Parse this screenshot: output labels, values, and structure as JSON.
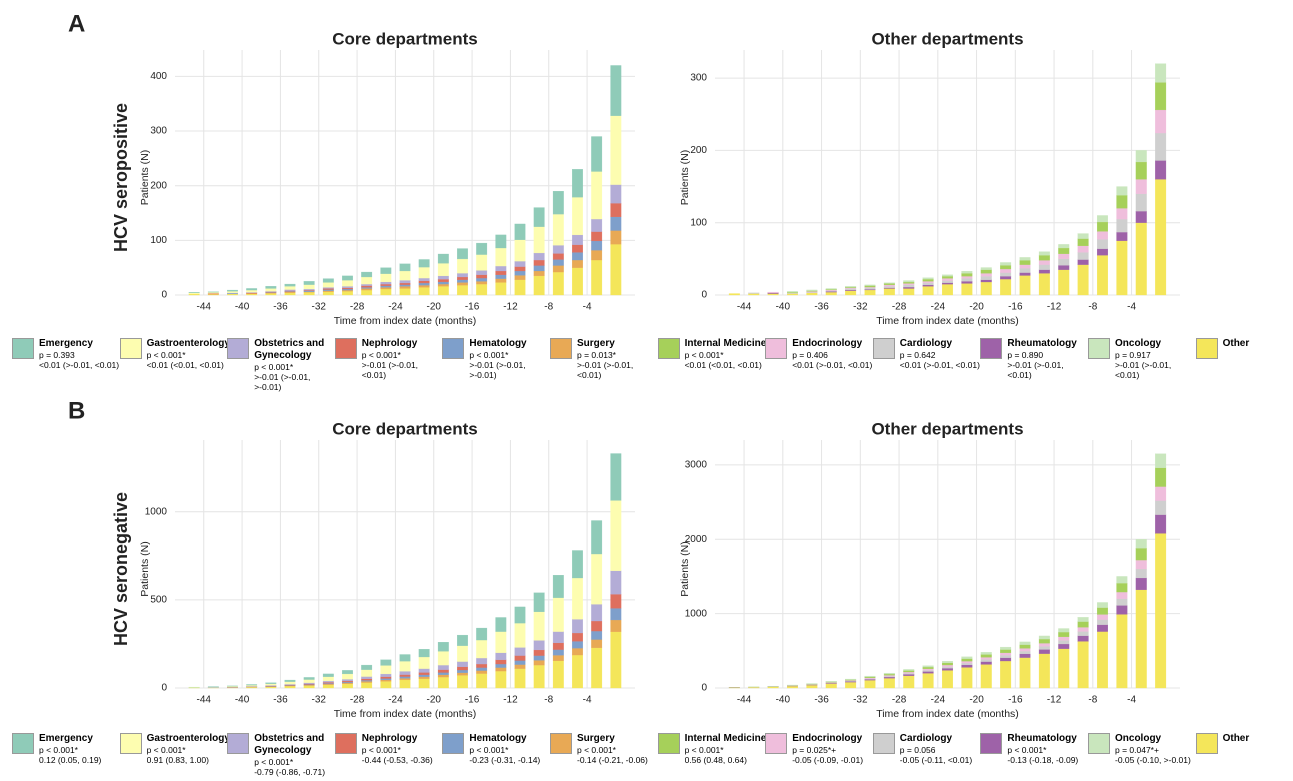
{
  "rows": [
    {
      "label": "A",
      "title": "HCV seropositive",
      "legend": [
        {
          "name": "Emergency",
          "color": "#8fcbb8",
          "p": "p = 0.393",
          "ci": "<0.01 (>-0.01, <0.01)"
        },
        {
          "name": "Gastroenterology",
          "color": "#fdfdb0",
          "p": "p < 0.001*",
          "ci": "<0.01 (<0.01, <0.01)"
        },
        {
          "name": "Obstetrics and Gynecology",
          "color": "#b3acd6",
          "p": "p < 0.001*",
          "ci": ">-0.01 (>-0.01, >-0.01)"
        },
        {
          "name": "Nephrology",
          "color": "#de6f5e",
          "p": "p < 0.001*",
          "ci": ">-0.01 (>-0.01, <0.01)"
        },
        {
          "name": "Hematology",
          "color": "#7e9fcb",
          "p": "p < 0.001*",
          "ci": ">-0.01 (>-0.01, >-0.01)"
        },
        {
          "name": "Surgery",
          "color": "#e8a955",
          "p": "p = 0.013*",
          "ci": ">-0.01 (>-0.01, <0.01)"
        },
        {
          "name": "Internal Medicine",
          "color": "#a6d05a",
          "p": "p < 0.001*",
          "ci": "<0.01 (<0.01, <0.01)"
        },
        {
          "name": "Endocrinology",
          "color": "#efbedc",
          "p": "p = 0.406",
          "ci": "<0.01 (>-0.01, <0.01)"
        },
        {
          "name": "Cardiology",
          "color": "#cfcfcf",
          "p": "p = 0.642",
          "ci": "<0.01 (>-0.01, <0.01)"
        },
        {
          "name": "Rheumatology",
          "color": "#9e62a8",
          "p": "p = 0.890",
          "ci": ">-0.01 (>-0.01, <0.01)"
        },
        {
          "name": "Oncology",
          "color": "#c9e6bd",
          "p": "p = 0.917",
          "ci": ">-0.01 (>-0.01, <0.01)"
        },
        {
          "name": "Other",
          "color": "#f4e65a"
        }
      ]
    },
    {
      "label": "B",
      "title": "HCV seronegative",
      "legend": [
        {
          "name": "Emergency",
          "color": "#8fcbb8",
          "p": "p < 0.001*",
          "ci": "0.12 (0.05, 0.19)"
        },
        {
          "name": "Gastroenterology",
          "color": "#fdfdb0",
          "p": "p < 0.001*",
          "ci": "0.91 (0.83, 1.00)"
        },
        {
          "name": "Obstetrics and Gynecology",
          "color": "#b3acd6",
          "p": "p < 0.001*",
          "ci": "-0.79 (-0.86, -0.71)"
        },
        {
          "name": "Nephrology",
          "color": "#de6f5e",
          "p": "p < 0.001*",
          "ci": "-0.44 (-0.53, -0.36)"
        },
        {
          "name": "Hematology",
          "color": "#7e9fcb",
          "p": "p < 0.001*",
          "ci": "-0.23 (-0.31, -0.14)"
        },
        {
          "name": "Surgery",
          "color": "#e8a955",
          "p": "p < 0.001*",
          "ci": "-0.14 (-0.21, -0.06)"
        },
        {
          "name": "Internal Medicine",
          "color": "#a6d05a",
          "p": "p < 0.001*",
          "ci": "0.56 (0.48, 0.64)"
        },
        {
          "name": "Endocrinology",
          "color": "#efbedc",
          "p": "p = 0.025*+",
          "ci": "-0.05 (-0.09, -0.01)"
        },
        {
          "name": "Cardiology",
          "color": "#cfcfcf",
          "p": "p = 0.056",
          "ci": "-0.05 (-0.11, <0.01)"
        },
        {
          "name": "Rheumatology",
          "color": "#9e62a8",
          "p": "p < 0.001*",
          "ci": "-0.13 (-0.18, -0.09)"
        },
        {
          "name": "Oncology",
          "color": "#c9e6bd",
          "p": "p = 0.047*+",
          "ci": "-0.05 (-0.10, >-0.01)"
        },
        {
          "name": "Other",
          "color": "#f4e65a"
        }
      ]
    }
  ],
  "chart_data": [
    {
      "type": "bar",
      "stacked": true,
      "title": "Core departments",
      "xlabel": "Time from index date (months)",
      "ylabel": "Patients (N)",
      "x": [
        -45,
        -43,
        -41,
        -39,
        -37,
        -35,
        -33,
        -31,
        -29,
        -27,
        -25,
        -23,
        -21,
        -19,
        -17,
        -15,
        -13,
        -11,
        -9,
        -7,
        -5,
        -3,
        -1
      ],
      "xlim": [
        -47,
        1
      ],
      "xticks": [
        -44,
        -40,
        -36,
        -32,
        -28,
        -24,
        -20,
        -16,
        -12,
        -8,
        -4
      ],
      "ylim": [
        0,
        430
      ],
      "yticks": [
        0,
        100,
        200,
        300,
        400
      ],
      "grid": true,
      "series": [
        {
          "name": "Other",
          "color": "#f4e65a",
          "values": [
            2,
            1,
            2,
            2,
            3,
            4,
            5,
            6,
            7,
            9,
            11,
            12,
            14,
            16,
            18,
            20,
            23,
            28,
            35,
            42,
            50,
            64,
            93
          ]
        },
        {
          "name": "Surgery",
          "color": "#e8a955",
          "values": [
            0,
            1,
            0,
            1,
            1,
            2,
            1,
            2,
            2,
            3,
            3,
            4,
            4,
            4,
            5,
            5,
            7,
            8,
            9,
            12,
            14,
            18,
            25
          ]
        },
        {
          "name": "Hematology",
          "color": "#7e9fcb",
          "values": [
            0,
            0,
            1,
            0,
            1,
            1,
            2,
            2,
            2,
            2,
            3,
            3,
            4,
            4,
            5,
            6,
            7,
            8,
            10,
            11,
            14,
            17,
            25
          ]
        },
        {
          "name": "Nephrology",
          "color": "#de6f5e",
          "values": [
            0,
            1,
            0,
            1,
            1,
            1,
            1,
            2,
            2,
            3,
            3,
            3,
            4,
            5,
            5,
            6,
            7,
            8,
            10,
            11,
            14,
            17,
            25
          ]
        },
        {
          "name": "Obstetrics and Gynecology",
          "color": "#b3acd6",
          "values": [
            0,
            0,
            1,
            1,
            1,
            2,
            2,
            2,
            3,
            3,
            4,
            5,
            5,
            6,
            7,
            8,
            9,
            10,
            13,
            15,
            18,
            23,
            34
          ]
        },
        {
          "name": "Gastroenterology",
          "color": "#fdfdb0",
          "values": [
            2,
            2,
            3,
            4,
            5,
            6,
            8,
            9,
            11,
            13,
            15,
            17,
            20,
            23,
            26,
            29,
            33,
            39,
            48,
            57,
            69,
            87,
            126
          ]
        },
        {
          "name": "Emergency",
          "color": "#8fcbb8",
          "values": [
            1,
            1,
            2,
            3,
            4,
            4,
            6,
            7,
            8,
            9,
            11,
            13,
            14,
            17,
            19,
            21,
            24,
            29,
            35,
            42,
            51,
            64,
            92
          ]
        }
      ]
    },
    {
      "type": "bar",
      "stacked": true,
      "title": "Other departments",
      "xlabel": "Time from index date (months)",
      "ylabel": "Patients (N)",
      "x": [
        -45,
        -43,
        -41,
        -39,
        -37,
        -35,
        -33,
        -31,
        -29,
        -27,
        -25,
        -23,
        -21,
        -19,
        -17,
        -15,
        -13,
        -11,
        -9,
        -7,
        -5,
        -3,
        -1
      ],
      "xlim": [
        -47,
        1
      ],
      "xticks": [
        -44,
        -40,
        -36,
        -32,
        -28,
        -24,
        -20,
        -16,
        -12,
        -8,
        -4
      ],
      "ylim": [
        0,
        325
      ],
      "yticks": [
        0,
        100,
        200,
        300
      ],
      "grid": true,
      "series": [
        {
          "name": "Other",
          "color": "#f4e65a",
          "values": [
            2,
            2,
            2,
            2,
            3,
            4,
            6,
            7,
            9,
            9,
            12,
            15,
            16,
            18,
            22,
            27,
            30,
            35,
            42,
            55,
            75,
            100,
            160
          ]
        },
        {
          "name": "Rheumatology",
          "color": "#9e62a8",
          "values": [
            0,
            0,
            1,
            0,
            0,
            1,
            1,
            1,
            1,
            2,
            2,
            2,
            3,
            3,
            4,
            4,
            5,
            6,
            7,
            9,
            12,
            16,
            26
          ]
        },
        {
          "name": "Cardiology",
          "color": "#cfcfcf",
          "values": [
            0,
            1,
            0,
            1,
            1,
            1,
            2,
            2,
            2,
            3,
            3,
            3,
            4,
            5,
            5,
            6,
            7,
            9,
            10,
            13,
            18,
            24,
            38
          ]
        },
        {
          "name": "Endocrinology",
          "color": "#efbedc",
          "values": [
            0,
            0,
            1,
            0,
            1,
            1,
            1,
            1,
            2,
            2,
            2,
            3,
            3,
            4,
            5,
            5,
            6,
            7,
            9,
            11,
            15,
            20,
            32
          ]
        },
        {
          "name": "Internal Medicine",
          "color": "#a6d05a",
          "values": [
            0,
            0,
            0,
            1,
            1,
            1,
            1,
            2,
            2,
            2,
            3,
            3,
            4,
            5,
            5,
            6,
            7,
            8,
            10,
            13,
            18,
            24,
            38
          ]
        },
        {
          "name": "Oncology",
          "color": "#c9e6bd",
          "values": [
            0,
            0,
            0,
            1,
            1,
            1,
            1,
            1,
            1,
            2,
            2,
            2,
            3,
            3,
            4,
            4,
            5,
            5,
            7,
            9,
            12,
            16,
            26
          ]
        }
      ]
    },
    {
      "type": "bar",
      "stacked": true,
      "title": "Core departments",
      "xlabel": "Time from index date (months)",
      "ylabel": "Patients (N)",
      "x": [
        -45,
        -43,
        -41,
        -39,
        -37,
        -35,
        -33,
        -31,
        -29,
        -27,
        -25,
        -23,
        -21,
        -19,
        -17,
        -15,
        -13,
        -11,
        -9,
        -7,
        -5,
        -3,
        -1
      ],
      "xlim": [
        -47,
        1
      ],
      "xticks": [
        -44,
        -40,
        -36,
        -32,
        -28,
        -24,
        -20,
        -16,
        -12,
        -8,
        -4
      ],
      "ylim": [
        0,
        1350
      ],
      "yticks": [
        0,
        500,
        1000
      ],
      "grid": true,
      "series": [
        {
          "name": "Other",
          "color": "#f4e65a",
          "values": [
            2,
            2,
            2,
            5,
            7,
            11,
            14,
            19,
            24,
            31,
            38,
            46,
            53,
            62,
            72,
            82,
            96,
            110,
            130,
            154,
            187,
            228,
            319
          ]
        },
        {
          "name": "Surgery",
          "color": "#e8a955",
          "values": [
            0,
            0,
            1,
            1,
            1,
            2,
            3,
            4,
            5,
            7,
            8,
            9,
            11,
            13,
            15,
            17,
            20,
            23,
            27,
            32,
            39,
            47,
            67
          ]
        },
        {
          "name": "Hematology",
          "color": "#7e9fcb",
          "values": [
            0,
            1,
            1,
            1,
            2,
            2,
            3,
            4,
            5,
            6,
            8,
            10,
            11,
            13,
            15,
            17,
            20,
            23,
            27,
            32,
            39,
            48,
            66
          ]
        },
        {
          "name": "Nephrology",
          "color": "#de6f5e",
          "values": [
            0,
            0,
            1,
            1,
            2,
            3,
            4,
            5,
            6,
            8,
            10,
            11,
            13,
            16,
            18,
            20,
            24,
            28,
            32,
            38,
            47,
            57,
            80
          ]
        },
        {
          "name": "Obstetrics and Gynecology",
          "color": "#b3acd6",
          "values": [
            0,
            1,
            1,
            2,
            3,
            4,
            6,
            8,
            10,
            13,
            16,
            19,
            22,
            26,
            30,
            34,
            40,
            46,
            54,
            64,
            78,
            95,
            133
          ]
        },
        {
          "name": "Gastroenterology",
          "color": "#fdfdb0",
          "values": [
            2,
            2,
            4,
            6,
            9,
            14,
            18,
            24,
            30,
            39,
            48,
            57,
            66,
            78,
            90,
            102,
            120,
            138,
            162,
            192,
            234,
            285,
            399
          ]
        },
        {
          "name": "Emergency",
          "color": "#8fcbb8",
          "values": [
            1,
            2,
            2,
            4,
            6,
            9,
            12,
            16,
            20,
            26,
            32,
            38,
            44,
            52,
            60,
            68,
            80,
            92,
            108,
            128,
            156,
            190,
            266
          ]
        }
      ]
    },
    {
      "type": "bar",
      "stacked": true,
      "title": "Other departments",
      "xlabel": "Time from index date (months)",
      "ylabel": "Patients (N)",
      "x": [
        -45,
        -43,
        -41,
        -39,
        -37,
        -35,
        -33,
        -31,
        -29,
        -27,
        -25,
        -23,
        -21,
        -19,
        -17,
        -15,
        -13,
        -11,
        -9,
        -7,
        -5,
        -3,
        -1
      ],
      "xlim": [
        -47,
        1
      ],
      "xticks": [
        -44,
        -40,
        -36,
        -32,
        -28,
        -24,
        -20,
        -16,
        -12,
        -8,
        -4
      ],
      "ylim": [
        0,
        3200
      ],
      "yticks": [
        0,
        1000,
        2000,
        3000
      ],
      "grid": true,
      "series": [
        {
          "name": "Other",
          "color": "#f4e65a",
          "values": [
            6,
            10,
            16,
            26,
            39,
            60,
            79,
            105,
            132,
            165,
            198,
            237,
            277,
            317,
            363,
            409,
            462,
            528,
            627,
            759,
            990,
            1320,
            2079
          ]
        },
        {
          "name": "Rheumatology",
          "color": "#9e62a8",
          "values": [
            1,
            1,
            2,
            3,
            5,
            7,
            10,
            13,
            16,
            20,
            24,
            29,
            34,
            38,
            44,
            50,
            56,
            64,
            76,
            92,
            120,
            160,
            252
          ]
        },
        {
          "name": "Cardiology",
          "color": "#cfcfcf",
          "values": [
            1,
            1,
            1,
            3,
            3,
            6,
            7,
            9,
            12,
            15,
            18,
            21,
            25,
            29,
            33,
            37,
            42,
            48,
            57,
            69,
            90,
            120,
            189
          ]
        },
        {
          "name": "Endocrinology",
          "color": "#efbedc",
          "values": [
            1,
            1,
            2,
            2,
            4,
            5,
            7,
            10,
            12,
            15,
            18,
            22,
            25,
            29,
            33,
            37,
            42,
            48,
            57,
            69,
            90,
            120,
            189
          ]
        },
        {
          "name": "Internal Medicine",
          "color": "#a6d05a",
          "values": [
            1,
            1,
            2,
            3,
            5,
            7,
            10,
            13,
            16,
            20,
            24,
            29,
            34,
            38,
            44,
            50,
            56,
            64,
            76,
            92,
            120,
            160,
            252
          ]
        },
        {
          "name": "Oncology",
          "color": "#c9e6bd",
          "values": [
            0,
            1,
            2,
            3,
            4,
            5,
            7,
            10,
            12,
            15,
            18,
            22,
            25,
            29,
            33,
            37,
            42,
            48,
            57,
            69,
            90,
            120,
            189
          ]
        }
      ]
    }
  ]
}
